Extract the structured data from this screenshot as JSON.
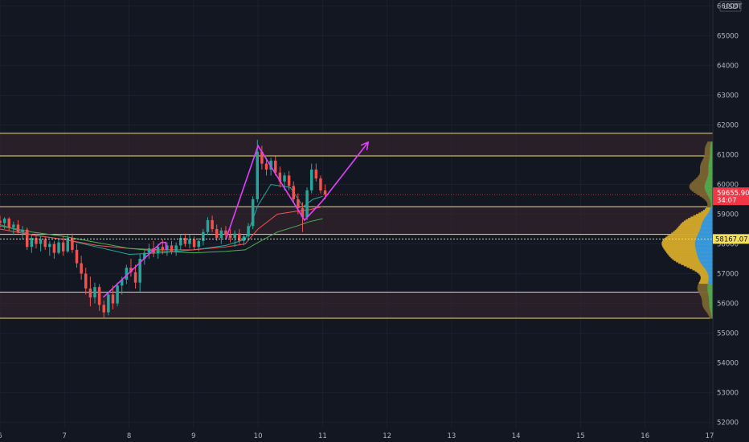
{
  "chart_data": {
    "type": "candlestick",
    "x_ticks": [
      "6",
      "7",
      "8",
      "9",
      "10",
      "11",
      "12",
      "13",
      "14",
      "15",
      "16",
      "17"
    ],
    "y_ticks": [
      "52000",
      "53000",
      "54000",
      "55000",
      "56000",
      "57000",
      "58000",
      "59000",
      "60000",
      "61000",
      "62000",
      "63000",
      "64000",
      "65000",
      "66000"
    ],
    "currency": "USDT",
    "xlim": [
      6,
      17.05
    ],
    "ylim": [
      51800,
      66200
    ],
    "last_price": 59655.9,
    "last_price_label": "59655.90",
    "countdown": "34:07",
    "poc_price": 58167.07,
    "poc_label": "58167.07",
    "zones": [
      {
        "low": 60960,
        "high": 61720
      },
      {
        "low": 58320,
        "high": 59250
      },
      {
        "low": 55500,
        "high": 56380
      }
    ],
    "candles": [
      [
        6.0,
        58780,
        58950,
        58550,
        58700
      ],
      [
        6.07,
        58700,
        58900,
        58500,
        58850
      ],
      [
        6.14,
        58850,
        58900,
        58450,
        58550
      ],
      [
        6.21,
        58550,
        58750,
        58300,
        58650
      ],
      [
        6.28,
        58650,
        58800,
        58350,
        58400
      ],
      [
        6.35,
        58400,
        58600,
        58150,
        58480
      ],
      [
        6.42,
        58480,
        58550,
        57800,
        57900
      ],
      [
        6.49,
        57900,
        58300,
        57700,
        58200
      ],
      [
        6.56,
        58200,
        58350,
        57850,
        58000
      ],
      [
        6.63,
        58000,
        58250,
        57750,
        58150
      ],
      [
        6.7,
        58150,
        58250,
        57800,
        57900
      ],
      [
        6.77,
        57900,
        58100,
        57600,
        58000
      ],
      [
        6.84,
        58000,
        58100,
        57500,
        57700
      ],
      [
        6.91,
        57700,
        58150,
        57650,
        58050
      ],
      [
        6.98,
        58050,
        58250,
        57600,
        57750
      ],
      [
        7.05,
        57750,
        58300,
        57700,
        58200
      ],
      [
        7.12,
        58200,
        58350,
        57700,
        57800
      ],
      [
        7.19,
        57800,
        58000,
        57200,
        57350
      ],
      [
        7.26,
        57350,
        57600,
        56800,
        57000
      ],
      [
        7.33,
        57000,
        57200,
        56300,
        56500
      ],
      [
        7.4,
        56500,
        56900,
        55900,
        56200
      ],
      [
        7.47,
        56200,
        56700,
        56000,
        56550
      ],
      [
        7.54,
        56550,
        56650,
        55750,
        55950
      ],
      [
        7.61,
        55950,
        56100,
        55500,
        55700
      ],
      [
        7.68,
        55700,
        56400,
        55600,
        56300
      ],
      [
        7.75,
        56300,
        56600,
        55800,
        56000
      ],
      [
        7.82,
        56000,
        56700,
        55900,
        56600
      ],
      [
        7.89,
        56600,
        56900,
        56300,
        56800
      ],
      [
        7.96,
        56800,
        57300,
        56650,
        57200
      ],
      [
        8.03,
        57200,
        57500,
        56900,
        57050
      ],
      [
        8.1,
        57050,
        57300,
        56500,
        56700
      ],
      [
        8.17,
        56700,
        57650,
        56400,
        57500
      ],
      [
        8.24,
        57500,
        57800,
        57300,
        57700
      ],
      [
        8.31,
        57700,
        58000,
        57500,
        57850
      ],
      [
        8.38,
        57850,
        58100,
        57550,
        57700
      ],
      [
        8.45,
        57700,
        58000,
        57500,
        57900
      ],
      [
        8.52,
        57900,
        58150,
        57650,
        57800
      ],
      [
        8.59,
        57800,
        58050,
        57600,
        57950
      ],
      [
        8.66,
        57950,
        58100,
        57650,
        57750
      ],
      [
        8.73,
        57750,
        58050,
        57600,
        57950
      ],
      [
        8.8,
        57950,
        58300,
        57800,
        58200
      ],
      [
        8.87,
        58200,
        58350,
        57900,
        58000
      ],
      [
        8.94,
        58000,
        58300,
        57850,
        58150
      ],
      [
        9.01,
        58150,
        58250,
        57800,
        57900
      ],
      [
        9.08,
        57900,
        58200,
        57750,
        58100
      ],
      [
        9.15,
        58100,
        58500,
        57950,
        58400
      ],
      [
        9.22,
        58400,
        58900,
        58300,
        58800
      ],
      [
        9.29,
        58800,
        58950,
        58400,
        58500
      ],
      [
        9.36,
        58500,
        58650,
        58100,
        58200
      ],
      [
        9.43,
        58200,
        58550,
        58000,
        58450
      ],
      [
        9.5,
        58450,
        58600,
        58200,
        58300
      ],
      [
        9.57,
        58300,
        58500,
        58050,
        58200
      ],
      [
        9.64,
        58200,
        58450,
        57900,
        58350
      ],
      [
        9.71,
        58350,
        58500,
        58000,
        58100
      ],
      [
        9.78,
        58100,
        58300,
        57950,
        58250
      ],
      [
        9.85,
        58250,
        58700,
        58100,
        58600
      ],
      [
        9.92,
        58600,
        59600,
        58500,
        59500
      ],
      [
        9.99,
        59500,
        61500,
        59400,
        61100
      ],
      [
        10.06,
        61100,
        61300,
        60500,
        60700
      ],
      [
        10.13,
        60700,
        60900,
        60300,
        60500
      ],
      [
        10.2,
        60500,
        60900,
        60300,
        60800
      ],
      [
        10.27,
        60800,
        60950,
        60300,
        60400
      ],
      [
        10.34,
        60400,
        60600,
        59900,
        60100
      ],
      [
        10.41,
        60100,
        60400,
        59800,
        60300
      ],
      [
        10.48,
        60300,
        60450,
        59800,
        59950
      ],
      [
        10.55,
        59950,
        60100,
        59400,
        59500
      ],
      [
        10.62,
        59500,
        59700,
        59000,
        59200
      ],
      [
        10.69,
        59200,
        59400,
        58400,
        58900
      ],
      [
        10.76,
        58900,
        59900,
        58800,
        59800
      ],
      [
        10.83,
        59800,
        60700,
        59700,
        60500
      ],
      [
        10.9,
        60500,
        60700,
        60100,
        60200
      ],
      [
        10.97,
        60200,
        60300,
        59700,
        59800
      ],
      [
        11.04,
        59800,
        60000,
        59500,
        59656
      ]
    ],
    "moving_averages": [
      {
        "color": "#26a69a",
        "points": [
          [
            6.0,
            58650
          ],
          [
            6.5,
            58300
          ],
          [
            7.0,
            58150
          ],
          [
            7.5,
            57900
          ],
          [
            8.0,
            57650
          ],
          [
            8.5,
            57700
          ],
          [
            9.0,
            57800
          ],
          [
            9.5,
            57950
          ],
          [
            9.8,
            58150
          ],
          [
            10.0,
            59300
          ],
          [
            10.2,
            60000
          ],
          [
            10.5,
            59900
          ],
          [
            10.7,
            59250
          ],
          [
            10.85,
            59500
          ],
          [
            11.0,
            59600
          ]
        ]
      },
      {
        "color": "#ef5350",
        "points": [
          [
            6.0,
            58500
          ],
          [
            6.5,
            58300
          ],
          [
            7.0,
            58150
          ],
          [
            7.5,
            57950
          ],
          [
            8.0,
            57850
          ],
          [
            8.5,
            57800
          ],
          [
            9.0,
            57800
          ],
          [
            9.5,
            57900
          ],
          [
            9.8,
            58000
          ],
          [
            10.0,
            58500
          ],
          [
            10.3,
            59000
          ],
          [
            10.6,
            59100
          ],
          [
            10.8,
            59150
          ],
          [
            11.0,
            59250
          ]
        ]
      },
      {
        "color": "#4caf50",
        "points": [
          [
            6.0,
            58600
          ],
          [
            6.5,
            58400
          ],
          [
            7.0,
            58250
          ],
          [
            7.5,
            58050
          ],
          [
            8.0,
            57850
          ],
          [
            8.5,
            57750
          ],
          [
            9.0,
            57700
          ],
          [
            9.5,
            57750
          ],
          [
            9.8,
            57800
          ],
          [
            10.0,
            58050
          ],
          [
            10.3,
            58400
          ],
          [
            10.6,
            58600
          ],
          [
            10.8,
            58750
          ],
          [
            11.0,
            58850
          ]
        ]
      }
    ],
    "annotations": [
      {
        "type": "polyline",
        "color": "#e040fb",
        "points": [
          [
            7.6,
            56200
          ],
          [
            8.5,
            58050
          ],
          [
            8.57,
            58050
          ],
          [
            8.57,
            57800
          ]
        ],
        "arrow": false
      },
      {
        "type": "polyline",
        "color": "#e040fb",
        "points": [
          [
            9.5,
            58150
          ],
          [
            10.0,
            61300
          ],
          [
            10.72,
            58800
          ],
          [
            11.0,
            59450
          ],
          [
            11.7,
            61400
          ]
        ],
        "arrow": true
      }
    ]
  }
}
